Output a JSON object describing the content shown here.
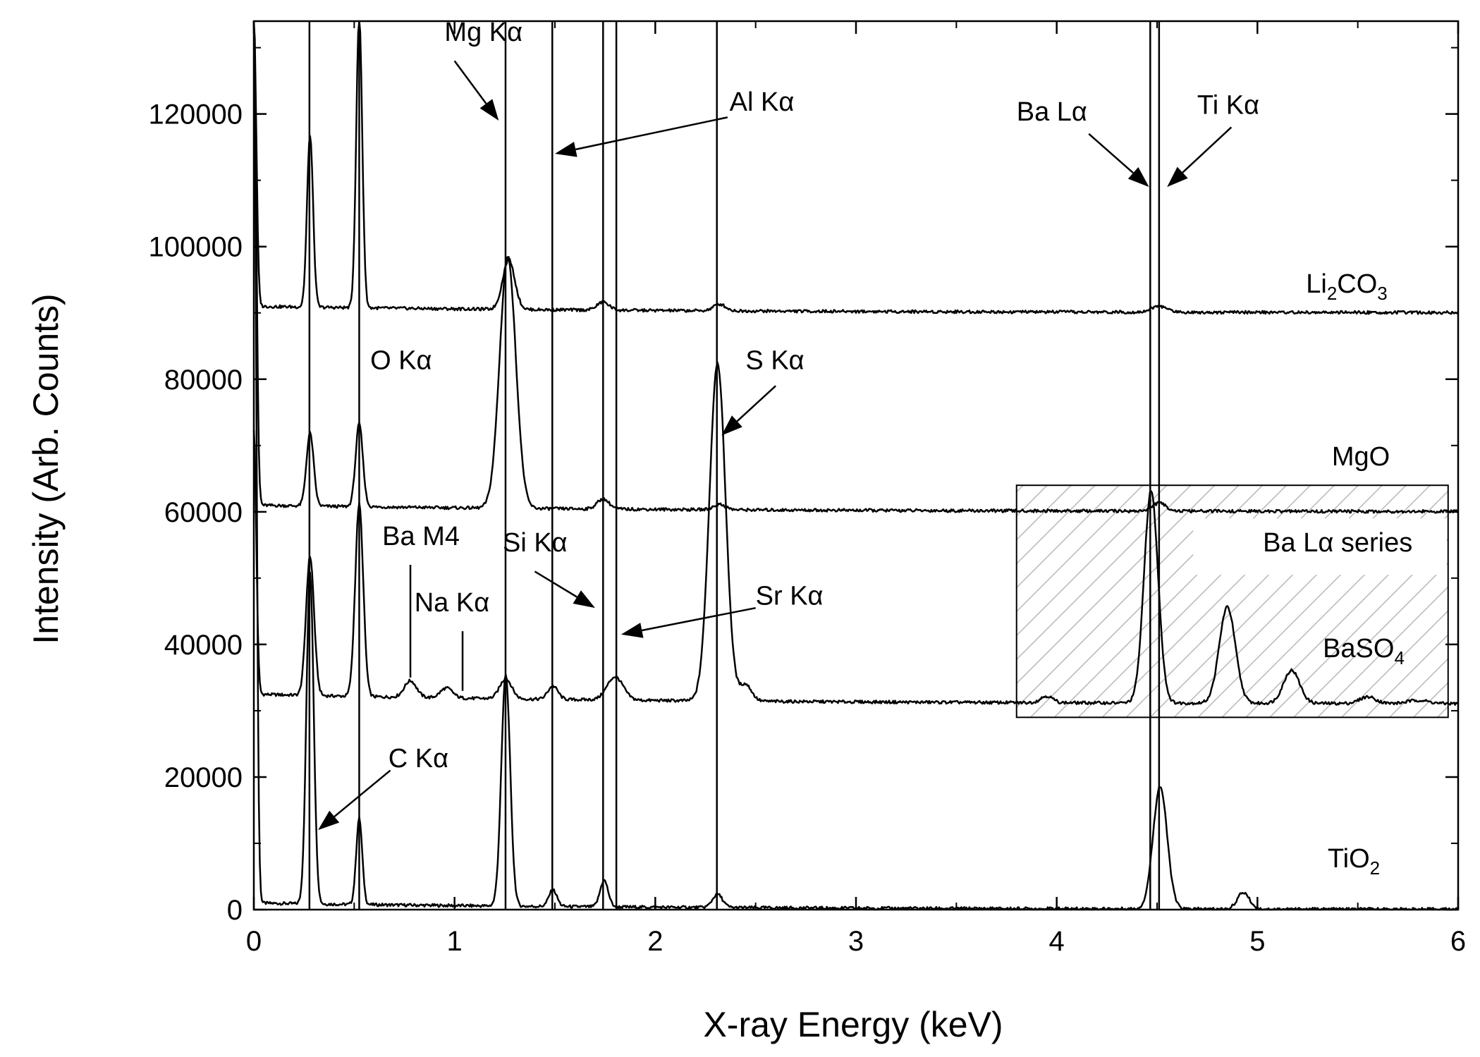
{
  "chart_data": {
    "type": "line",
    "xlabel": "X-ray Energy (keV)",
    "ylabel": "Intensity (Arb. Counts)",
    "xlim": [
      0,
      6
    ],
    "ylim": [
      0,
      134000
    ],
    "xticks": [
      "0",
      "1",
      "2",
      "3",
      "4",
      "5",
      "6"
    ],
    "yticks": [
      "0",
      "20000",
      "40000",
      "60000",
      "80000",
      "100000",
      "120000"
    ],
    "grid": false,
    "legend": "none",
    "series": [
      {
        "name": "TiO2",
        "label_main": "TiO",
        "label_sub": "2",
        "baseline": 0,
        "tail_offset": 1000,
        "peaks": [
          [
            0.0,
            134000,
            0.012
          ],
          [
            0.28,
            50000,
            0.018
          ],
          [
            0.525,
            13000,
            0.015
          ],
          [
            1.255,
            35000,
            0.022
          ],
          [
            1.49,
            2500,
            0.02
          ],
          [
            1.745,
            4000,
            0.02
          ],
          [
            2.31,
            2000,
            0.025
          ],
          [
            4.515,
            18500,
            0.035
          ],
          [
            4.93,
            2500,
            0.03
          ]
        ]
      },
      {
        "name": "BaSO4",
        "label_main": "BaSO",
        "label_sub": "4",
        "baseline": 31000,
        "tail_offset": 1500,
        "peaks": [
          [
            0.0,
            40000,
            0.012
          ],
          [
            0.28,
            21000,
            0.02
          ],
          [
            0.525,
            29000,
            0.02
          ],
          [
            0.78,
            2500,
            0.03
          ],
          [
            0.96,
            1500,
            0.03
          ],
          [
            1.255,
            3000,
            0.03
          ],
          [
            1.49,
            2000,
            0.025
          ],
          [
            1.8,
            3500,
            0.04
          ],
          [
            2.31,
            51000,
            0.04
          ],
          [
            2.45,
            2500,
            0.03
          ],
          [
            3.95,
            1000,
            0.03
          ],
          [
            4.47,
            32000,
            0.035
          ],
          [
            4.85,
            14500,
            0.04
          ],
          [
            5.17,
            5000,
            0.04
          ],
          [
            5.55,
            1000,
            0.04
          ],
          [
            5.8,
            500,
            0.05
          ]
        ]
      },
      {
        "name": "MgO",
        "label_main": "MgO",
        "label_sub": "",
        "baseline": 60000,
        "tail_offset": 1000,
        "peaks": [
          [
            0.0,
            74000,
            0.012
          ],
          [
            0.28,
            11000,
            0.018
          ],
          [
            0.525,
            12500,
            0.018
          ],
          [
            1.265,
            38000,
            0.04
          ],
          [
            1.74,
            1500,
            0.03
          ],
          [
            2.32,
            800,
            0.03
          ],
          [
            4.51,
            1200,
            0.035
          ]
        ]
      },
      {
        "name": "Li2CO3",
        "label_main": "Li",
        "label_sub": "2",
        "label_main2": "CO",
        "label_sub2": "3",
        "baseline": 90000,
        "tail_offset": 1000,
        "peaks": [
          [
            0.0,
            44000,
            0.012
          ],
          [
            0.28,
            26000,
            0.015
          ],
          [
            0.525,
            44000,
            0.015
          ],
          [
            1.27,
            7500,
            0.03
          ],
          [
            1.74,
            1200,
            0.03
          ],
          [
            2.32,
            1000,
            0.03
          ],
          [
            4.51,
            900,
            0.04
          ]
        ]
      }
    ],
    "reference_lines_keV": [
      0.277,
      0.525,
      1.254,
      1.487,
      1.74,
      1.806,
      2.307,
      4.466,
      4.51
    ],
    "region": {
      "label": "Ba Lα series",
      "x": [
        3.8,
        5.95
      ],
      "y": [
        29000,
        64000
      ]
    },
    "annotations": [
      {
        "id": "mg-ka",
        "text": "Mg Kα",
        "x": 0.95,
        "y": 131000,
        "arrow": [
          [
            1.0,
            128000
          ],
          [
            1.22,
            119000
          ]
        ]
      },
      {
        "id": "al-ka",
        "text": "Al Kα",
        "x": 2.37,
        "y": 120500,
        "arrow": [
          [
            2.36,
            119500
          ],
          [
            1.5,
            114000
          ]
        ]
      },
      {
        "id": "ba-la",
        "text": "Ba Lα",
        "x": 3.8,
        "y": 119000,
        "arrow": [
          [
            4.16,
            117000
          ],
          [
            4.46,
            109000
          ]
        ]
      },
      {
        "id": "ti-ka",
        "text": "Ti Kα",
        "x": 4.7,
        "y": 120000,
        "arrow": [
          [
            4.87,
            118000
          ],
          [
            4.55,
            109000
          ]
        ]
      },
      {
        "id": "o-ka",
        "text": "O Kα",
        "x": 0.58,
        "y": 81500,
        "arrow": null
      },
      {
        "id": "s-ka",
        "text": "S Kα",
        "x": 2.45,
        "y": 81500,
        "arrow": [
          [
            2.6,
            79000
          ],
          [
            2.33,
            71500
          ]
        ]
      },
      {
        "id": "ba-m4",
        "text": "Ba M4",
        "x": 0.64,
        "y": 55000,
        "arrow": null
      },
      {
        "id": "si-ka",
        "text": "Si Kα",
        "x": 1.24,
        "y": 54000,
        "arrow": [
          [
            1.4,
            51000
          ],
          [
            1.7,
            45500
          ]
        ]
      },
      {
        "id": "sr-ka",
        "text": "Sr Kα",
        "x": 2.5,
        "y": 46000,
        "arrow": [
          [
            2.5,
            45500
          ],
          [
            1.83,
            41500
          ]
        ]
      },
      {
        "id": "na-ka",
        "text": "Na Kα",
        "x": 0.8,
        "y": 45000,
        "arrow": null
      },
      {
        "id": "c-ka",
        "text": "C Kα",
        "x": 0.67,
        "y": 21500,
        "arrow": [
          [
            0.68,
            21000
          ],
          [
            0.32,
            12000
          ]
        ]
      }
    ],
    "marker_ticks": [
      {
        "x": 0.78,
        "y": [
          35000,
          52000
        ]
      },
      {
        "x": 1.04,
        "y": [
          33000,
          42000
        ]
      }
    ]
  }
}
